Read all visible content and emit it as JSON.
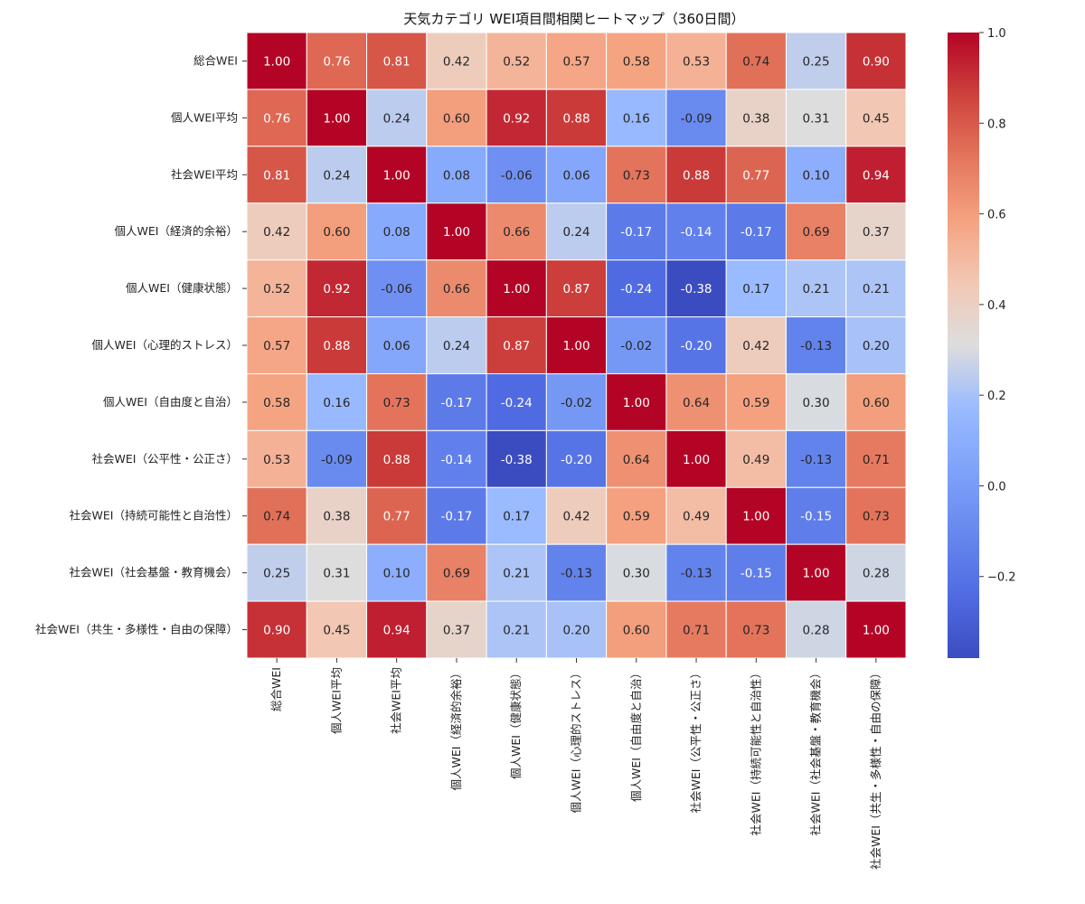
{
  "chart_data": {
    "type": "heatmap",
    "title": "天気カテゴリ WEI項目間相関ヒートマップ（360日間）",
    "row_labels": [
      "総合WEI",
      "個人WEI平均",
      "社会WEI平均",
      "個人WEI（経済的余裕）",
      "個人WEI（健康状態）",
      "個人WEI（心理的ストレス）",
      "個人WEI（自由度と自治）",
      "社会WEI（公平性・公正さ）",
      "社会WEI（持続可能性と自治性）",
      "社会WEI（社会基盤・教育機会）",
      "社会WEI（共生・多様性・自由の保障）"
    ],
    "col_labels": [
      "総合WEI",
      "個人WEI平均",
      "社会WEI平均",
      "個人WEI（経済的余裕）",
      "個人WEI（健康状態）",
      "個人WEI（心理的ストレス）",
      "個人WEI（自由度と自治）",
      "社会WEI（公平性・公正さ）",
      "社会WEI（持続可能性と自治性）",
      "社会WEI（社会基盤・教育機会）",
      "社会WEI（共生・多様性・自由の保障）"
    ],
    "values": [
      [
        1.0,
        0.76,
        0.81,
        0.42,
        0.52,
        0.57,
        0.58,
        0.53,
        0.74,
        0.25,
        0.9
      ],
      [
        0.76,
        1.0,
        0.24,
        0.6,
        0.92,
        0.88,
        0.16,
        -0.09,
        0.38,
        0.31,
        0.45
      ],
      [
        0.81,
        0.24,
        1.0,
        0.08,
        -0.06,
        0.06,
        0.73,
        0.88,
        0.77,
        0.1,
        0.94
      ],
      [
        0.42,
        0.6,
        0.08,
        1.0,
        0.66,
        0.24,
        -0.17,
        -0.14,
        -0.17,
        0.69,
        0.37
      ],
      [
        0.52,
        0.92,
        -0.06,
        0.66,
        1.0,
        0.87,
        -0.24,
        -0.38,
        0.17,
        0.21,
        0.21
      ],
      [
        0.57,
        0.88,
        0.06,
        0.24,
        0.87,
        1.0,
        -0.02,
        -0.2,
        0.42,
        -0.13,
        0.2
      ],
      [
        0.58,
        0.16,
        0.73,
        -0.17,
        -0.24,
        -0.02,
        1.0,
        0.64,
        0.59,
        0.3,
        0.6
      ],
      [
        0.53,
        -0.09,
        0.88,
        -0.14,
        -0.38,
        -0.2,
        0.64,
        1.0,
        0.49,
        -0.13,
        0.71
      ],
      [
        0.74,
        0.38,
        0.77,
        -0.17,
        0.17,
        0.42,
        0.59,
        0.49,
        1.0,
        -0.15,
        0.73
      ],
      [
        0.25,
        0.31,
        0.1,
        0.69,
        0.21,
        -0.13,
        0.3,
        -0.13,
        -0.15,
        1.0,
        0.28
      ],
      [
        0.9,
        0.45,
        0.94,
        0.37,
        0.21,
        0.2,
        0.6,
        0.71,
        0.73,
        0.28,
        1.0
      ]
    ],
    "value_format": "0.00",
    "colormap": "coolwarm",
    "color_range": [
      -0.38,
      1.0
    ],
    "colorbar": {
      "ticks": [
        1.0,
        0.8,
        0.6,
        0.4,
        0.2,
        0.0,
        -0.2
      ],
      "tick_labels": [
        "1.0",
        "0.8",
        "0.6",
        "0.4",
        "0.2",
        "0.0",
        "−0.2"
      ],
      "placement": "right"
    },
    "annotations": "cell values shown"
  }
}
